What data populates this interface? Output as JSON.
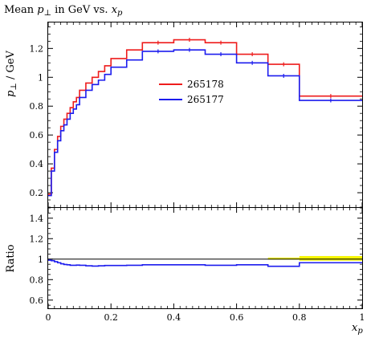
{
  "chart_data": {
    "type": "line",
    "title": "Mean p⊥ in GeV vs. xp",
    "title_parts": {
      "lead": "Mean ",
      "var": "p",
      "var_sub": "⊥",
      "mid": " in GeV vs. ",
      "xvar": "x",
      "xvar_sub": "p"
    },
    "xlabel": "xp",
    "xlabel_parts": {
      "var": "x",
      "sub": "p"
    },
    "ylabel": "p⊥ / GeV",
    "ylabel_parts": {
      "var": "p",
      "sub": "⊥",
      "rest": " / GeV"
    },
    "ratio_ylabel": "Ratio",
    "xlim": [
      0,
      1
    ],
    "ylim": [
      0.1,
      1.38
    ],
    "ratio_ylim": [
      0.52,
      1.5
    ],
    "x_ticks": [
      {
        "value": 0,
        "label": "0"
      },
      {
        "value": 0.2,
        "label": "0.2"
      },
      {
        "value": 0.4,
        "label": "0.4"
      },
      {
        "value": 0.6,
        "label": "0.6"
      },
      {
        "value": 0.8,
        "label": "0.8"
      },
      {
        "value": 1,
        "label": "1"
      }
    ],
    "y_ticks": [
      {
        "value": 0.2,
        "label": "0.2"
      },
      {
        "value": 0.4,
        "label": "0.4"
      },
      {
        "value": 0.6,
        "label": "0.6"
      },
      {
        "value": 0.8,
        "label": "0.8"
      },
      {
        "value": 1.0,
        "label": "1"
      },
      {
        "value": 1.2,
        "label": "1.2"
      }
    ],
    "ratio_ticks": [
      {
        "value": 0.6,
        "label": "0.6"
      },
      {
        "value": 0.8,
        "label": "0.8"
      },
      {
        "value": 1.0,
        "label": "1"
      },
      {
        "value": 1.2,
        "label": "1.2"
      },
      {
        "value": 1.4,
        "label": "1.4"
      }
    ],
    "bin_edges": [
      0,
      0.01,
      0.02,
      0.03,
      0.04,
      0.05,
      0.06,
      0.07,
      0.08,
      0.09,
      0.1,
      0.12,
      0.14,
      0.16,
      0.18,
      0.2,
      0.25,
      0.3,
      0.4,
      0.5,
      0.6,
      0.7,
      0.8,
      1.0
    ],
    "series": [
      {
        "name": "265178",
        "color": "#ee1c1c",
        "values": [
          0.19,
          0.37,
          0.5,
          0.59,
          0.66,
          0.71,
          0.75,
          0.79,
          0.83,
          0.86,
          0.91,
          0.96,
          1.0,
          1.04,
          1.08,
          1.13,
          1.19,
          1.24,
          1.26,
          1.24,
          1.16,
          1.09,
          0.87
        ]
      },
      {
        "name": "265177",
        "color": "#1c1cee",
        "values": [
          0.18,
          0.35,
          0.48,
          0.56,
          0.63,
          0.67,
          0.71,
          0.75,
          0.78,
          0.81,
          0.86,
          0.91,
          0.95,
          0.98,
          1.02,
          1.07,
          1.12,
          1.18,
          1.19,
          1.16,
          1.1,
          1.01,
          0.84
        ]
      }
    ],
    "ratio": {
      "reference_color": "#000000",
      "band_color": "#f5f500",
      "band": [
        {
          "x0": 0.7,
          "x1": 0.8,
          "lo": 0.995,
          "hi": 1.015
        },
        {
          "x0": 0.8,
          "x1": 1.0,
          "lo": 0.985,
          "hi": 1.03
        }
      ],
      "values": [
        0.99,
        0.985,
        0.975,
        0.965,
        0.955,
        0.948,
        0.945,
        0.94,
        0.94,
        0.942,
        0.94,
        0.935,
        0.932,
        0.935,
        0.938,
        0.938,
        0.94,
        0.945,
        0.945,
        0.94,
        0.945,
        0.93,
        0.965
      ]
    },
    "legend_placement": "center",
    "grid": false
  }
}
